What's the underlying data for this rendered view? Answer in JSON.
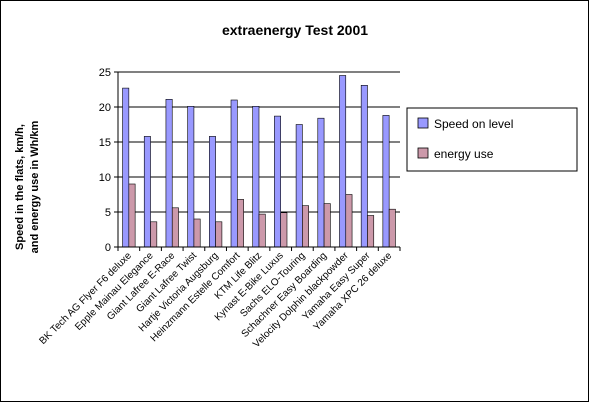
{
  "chart_data": {
    "type": "bar",
    "title": "extraenergy Test 2001",
    "xlabel": "",
    "ylabel_lines": [
      "Speed in the flats, km/h,",
      "and energy use in Wh/km"
    ],
    "ylim": [
      0,
      25
    ],
    "yticks": [
      0,
      5,
      10,
      15,
      20,
      25
    ],
    "grid": true,
    "legend_position": "right",
    "categories": [
      "BK Tech AG Flyer F6 deluxe",
      "Epple Mainau Elegance",
      "Giant Lafree E-Race",
      "Giant Lafree Twist",
      "Hartje Victoria Augsburg",
      "Heinzmann Estelle Comfort",
      "KTM Life Blitz",
      "Kynast E-Bike Luxus",
      "Sachs ELO-Touring",
      "Schachner Easy Boarding",
      "Velocity Dolphin blackpowder",
      "Yamaha Easy Super",
      "Yamaha XPC 26 deluxe"
    ],
    "series": [
      {
        "name": "Speed on level",
        "color": "#9999ff",
        "values": [
          22.7,
          15.8,
          21.1,
          20.1,
          15.8,
          21.0,
          20.1,
          18.7,
          17.5,
          18.4,
          24.5,
          23.1,
          18.8
        ]
      },
      {
        "name": "energy use",
        "color": "#cc99aa",
        "values": [
          9.0,
          3.6,
          5.6,
          4.0,
          3.6,
          6.8,
          4.7,
          4.9,
          5.9,
          6.2,
          7.5,
          4.5,
          5.4
        ]
      }
    ]
  }
}
